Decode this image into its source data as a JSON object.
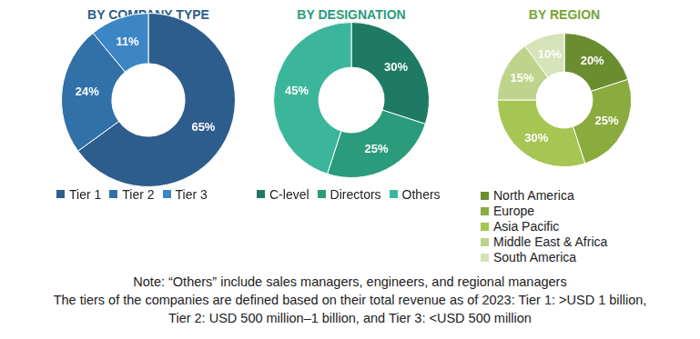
{
  "chart_data": [
    {
      "type": "doughnut",
      "title": "BY COMPANY TYPE",
      "categories": [
        "Tier 1",
        "Tier 2",
        "Tier 3"
      ],
      "values": [
        65,
        24,
        11
      ],
      "value_labels": [
        "65%",
        "24%",
        "11%"
      ],
      "colors": [
        "#2d5d8c",
        "#3270a8",
        "#3d86c6"
      ],
      "data_labels": true,
      "legend": "bottom"
    },
    {
      "type": "doughnut",
      "title": "BY DESIGNATION",
      "categories": [
        "C-level",
        "Directors",
        "Others"
      ],
      "values": [
        30,
        25,
        45
      ],
      "value_labels": [
        "30%",
        "25%",
        "45%"
      ],
      "colors": [
        "#1f7a63",
        "#2a9b7b",
        "#3bb69b"
      ],
      "data_labels": true,
      "legend": "bottom"
    },
    {
      "type": "doughnut",
      "title": "BY REGION",
      "categories": [
        "North America",
        "Europe",
        "Asia Pacific",
        "Middle East & Africa",
        "South America"
      ],
      "values": [
        20,
        25,
        30,
        15,
        10
      ],
      "value_labels": [
        "20%",
        "25%",
        "30%",
        "15%",
        "10%"
      ],
      "colors": [
        "#6a8d2f",
        "#8aab3d",
        "#a6c553",
        "#bfd38c",
        "#d6e2b8"
      ],
      "data_labels": true,
      "legend": "bottom"
    }
  ],
  "notes": [
    "Note: “Others” include sales managers, engineers, and regional managers",
    "The tiers of the companies are defined based on their total revenue as of 2023: Tier 1: >USD 1 billion,",
    "Tier 2: USD 500 million–1 billion, and Tier 3: <USD 500 million"
  ]
}
